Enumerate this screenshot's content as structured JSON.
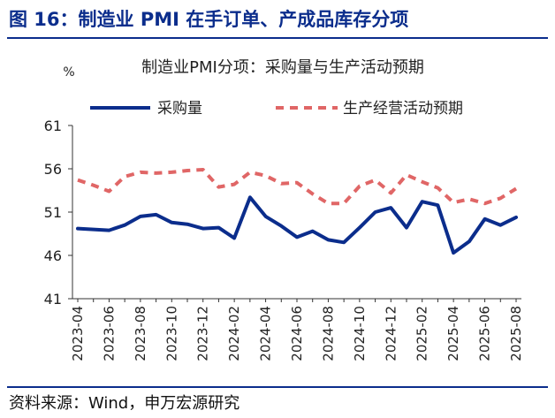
{
  "figure_title": "图 16：制造业 PMI 在手订单、产成品库存分项",
  "source": "资料来源：Wind，申万宏源研究",
  "chart_data": {
    "type": "line",
    "title": "制造业PMI分项：采购量与生产活动预期",
    "ylabel": "%",
    "xlabel": "",
    "ylim": [
      41,
      61
    ],
    "yticks": [
      41,
      46,
      51,
      56,
      61
    ],
    "grid": false,
    "legend_position": "top",
    "x": [
      "2023-04",
      "2023-05",
      "2023-06",
      "2023-07",
      "2023-08",
      "2023-09",
      "2023-10",
      "2023-11",
      "2023-12",
      "2024-01",
      "2024-02",
      "2024-03",
      "2024-04",
      "2024-05",
      "2024-06",
      "2024-07",
      "2024-08",
      "2024-09",
      "2024-10",
      "2024-11",
      "2024-12",
      "2025-01",
      "2025-02",
      "2025-03",
      "2025-04",
      "2025-05",
      "2025-06",
      "2025-07",
      "2025-08"
    ],
    "xtick_labels": [
      "2023-04",
      "2023-06",
      "2023-08",
      "2023-10",
      "2023-12",
      "2024-02",
      "2024-04",
      "2024-06",
      "2024-08",
      "2024-10",
      "2024-12",
      "2025-02",
      "2025-04",
      "2025-06",
      "2025-08"
    ],
    "series": [
      {
        "name": "采购量",
        "color": "#0b2d8c",
        "style": "solid",
        "values": [
          49.1,
          49.0,
          48.9,
          49.5,
          50.5,
          50.7,
          49.8,
          49.6,
          49.1,
          49.2,
          48.0,
          52.7,
          50.5,
          49.4,
          48.1,
          48.8,
          47.8,
          47.5,
          49.2,
          51.0,
          51.5,
          49.2,
          52.2,
          51.8,
          46.3,
          47.6,
          50.2,
          49.5,
          50.4
        ]
      },
      {
        "name": "生产经营活动预期",
        "color": "#e06666",
        "style": "dashed",
        "values": [
          54.7,
          54.1,
          53.4,
          55.1,
          55.6,
          55.5,
          55.6,
          55.8,
          55.9,
          53.9,
          54.2,
          55.6,
          55.2,
          54.3,
          54.4,
          53.1,
          52.0,
          52.0,
          54.0,
          54.7,
          53.2,
          55.3,
          54.5,
          53.8,
          52.1,
          52.5,
          52.0,
          52.6,
          53.7
        ]
      }
    ]
  }
}
